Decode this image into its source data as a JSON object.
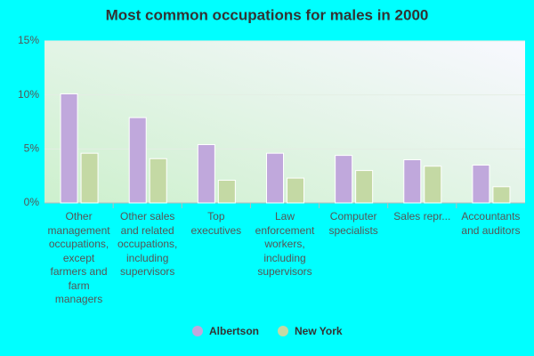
{
  "chart_data": {
    "type": "bar",
    "title": "Most common occupations for males in 2000",
    "categories": [
      "Other management occupations, except farmers and farm managers",
      "Other sales and related occupations, including supervisors",
      "Top executives",
      "Law enforcement workers, including supervisors",
      "Computer specialists",
      "Sales repr...",
      "Accountants and auditors"
    ],
    "series": [
      {
        "name": "Albertson",
        "color": "#c0a8dc",
        "values": [
          10.1,
          7.9,
          5.4,
          4.6,
          4.4,
          4.0,
          3.5
        ]
      },
      {
        "name": "New York",
        "color": "#c4d9a4",
        "values": [
          4.6,
          4.1,
          2.1,
          2.3,
          3.0,
          3.4,
          1.5
        ]
      }
    ],
    "ylim": [
      0,
      15
    ],
    "yticks": [
      {
        "value": 0,
        "label": "0%"
      },
      {
        "value": 5,
        "label": "5%"
      },
      {
        "value": 10,
        "label": "10%"
      },
      {
        "value": 15,
        "label": "15%"
      }
    ],
    "grid": true
  }
}
